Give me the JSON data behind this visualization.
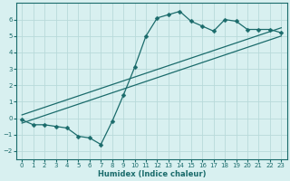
{
  "xlabel": "Humidex (Indice chaleur)",
  "bg_color": "#d8f0f0",
  "grid_color": "#b8dada",
  "line_color": "#1a6b6b",
  "xlim": [
    -0.5,
    23.5
  ],
  "ylim": [
    -2.5,
    7.0
  ],
  "xticks": [
    0,
    1,
    2,
    3,
    4,
    5,
    6,
    7,
    8,
    9,
    10,
    11,
    12,
    13,
    14,
    15,
    16,
    17,
    18,
    19,
    20,
    21,
    22,
    23
  ],
  "yticks": [
    -2,
    -1,
    0,
    1,
    2,
    3,
    4,
    5,
    6
  ],
  "line1_x": [
    0,
    1,
    2,
    3,
    4,
    5,
    6,
    7,
    8,
    9,
    10,
    11,
    12,
    13,
    14,
    15,
    16,
    17,
    18,
    19,
    20,
    21,
    22,
    23
  ],
  "line1_y": [
    -0.1,
    -0.4,
    -0.4,
    -0.5,
    -0.6,
    -1.1,
    -1.2,
    -1.6,
    -0.2,
    1.4,
    3.1,
    5.0,
    6.1,
    6.3,
    6.5,
    5.9,
    5.6,
    5.3,
    6.0,
    5.9,
    5.4,
    5.4,
    5.4,
    5.2
  ],
  "line2_x": [
    0,
    23
  ],
  "line2_y": [
    0.2,
    5.5
  ],
  "line3_x": [
    0,
    23
  ],
  "line3_y": [
    -0.3,
    5.0
  ],
  "marker_size": 2.5,
  "linewidth": 0.9,
  "tick_fontsize": 5.0,
  "xlabel_fontsize": 6.0
}
